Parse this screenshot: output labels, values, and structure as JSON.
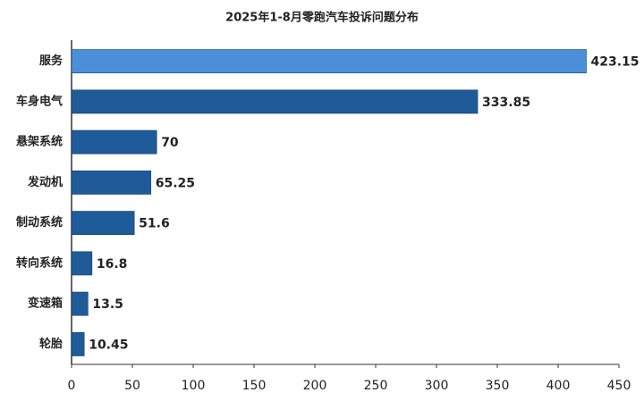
{
  "chart_data": {
    "type": "bar",
    "orientation": "horizontal",
    "title": "2025年1-8月零跑汽车投诉问题分布",
    "categories": [
      "服务",
      "车身电气",
      "悬架系统",
      "发动机",
      "制动系统",
      "转向系统",
      "变速箱",
      "轮胎"
    ],
    "values": [
      423.15,
      333.85,
      70,
      65.25,
      51.6,
      16.8,
      13.5,
      10.45
    ],
    "colors": [
      "#4a8fd8",
      "#1f5b98",
      "#1f5b98",
      "#1f5b98",
      "#1f5b98",
      "#1f5b98",
      "#1f5b98",
      "#1f5b98"
    ],
    "xlim": [
      0,
      450
    ],
    "xticks": [
      0,
      50,
      100,
      150,
      200,
      250,
      300,
      350,
      400,
      450
    ]
  }
}
